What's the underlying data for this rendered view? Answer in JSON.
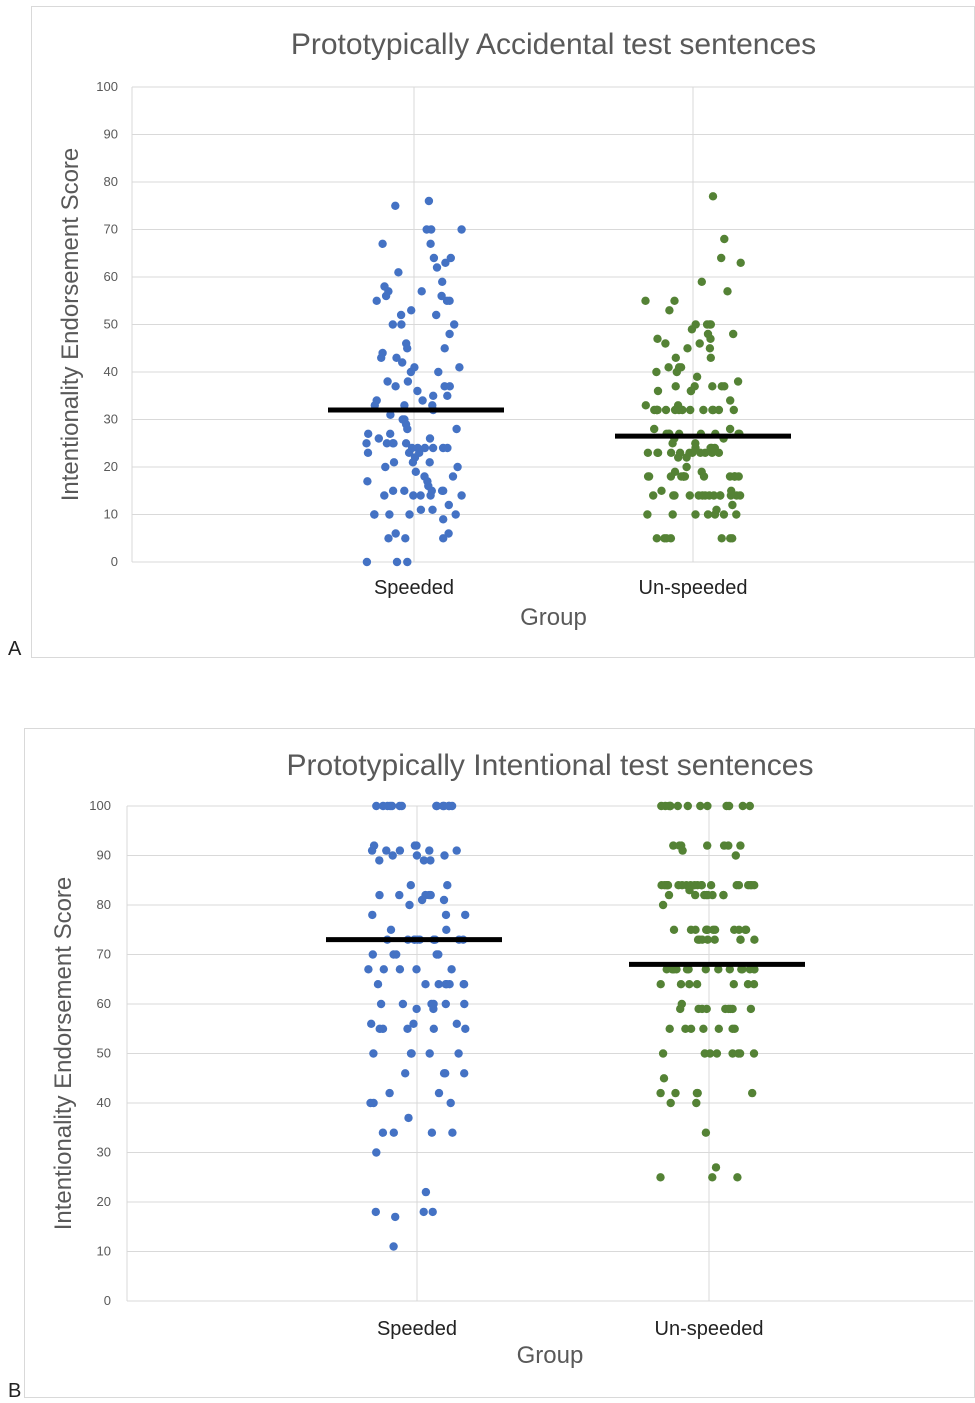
{
  "chart_data": [
    {
      "panel": "A",
      "type": "scatter",
      "title": "Prototypically Accidental test sentences",
      "xlabel": "Group",
      "ylabel": "Intentionality Endorsement Score",
      "ylim": [
        0,
        100
      ],
      "yticks": [
        0,
        10,
        20,
        30,
        40,
        50,
        60,
        70,
        80,
        90,
        100
      ],
      "categories": [
        "Speeded",
        "Un-speeded"
      ],
      "grid": true,
      "legend": "none",
      "series": [
        {
          "category": "Speeded",
          "color": "#4472C4",
          "mean": 32,
          "values": [
            76,
            75,
            70,
            70,
            70,
            67,
            67,
            64,
            64,
            63,
            62,
            61,
            59,
            58,
            57,
            57,
            56,
            56,
            55,
            55,
            55,
            53,
            52,
            52,
            50,
            50,
            50,
            48,
            46,
            45,
            45,
            44,
            43,
            43,
            42,
            41,
            41,
            40,
            40,
            38,
            38,
            37,
            37,
            37,
            36,
            35,
            35,
            34,
            34,
            33,
            33,
            33,
            32,
            31,
            30,
            30,
            29,
            28,
            28,
            27,
            27,
            26,
            26,
            25,
            25,
            25,
            25,
            25,
            24,
            24,
            24,
            24,
            24,
            24,
            23,
            23,
            23,
            22,
            21,
            21,
            21,
            20,
            20,
            19,
            18,
            18,
            17,
            17,
            16,
            15,
            15,
            15,
            15,
            15,
            14,
            14,
            14,
            14,
            14,
            12,
            11,
            11,
            10,
            10,
            10,
            10,
            10,
            9,
            6,
            6,
            5,
            5,
            5,
            0,
            0,
            0
          ]
        },
        {
          "category": "Un-speeded",
          "color": "#548235",
          "mean": 26.5,
          "values": [
            77,
            68,
            64,
            63,
            59,
            57,
            55,
            55,
            53,
            50,
            50,
            50,
            50,
            49,
            48,
            48,
            47,
            47,
            46,
            46,
            45,
            45,
            43,
            43,
            41,
            41,
            41,
            40,
            40,
            39,
            38,
            37,
            37,
            37,
            37,
            37,
            36,
            36,
            36,
            34,
            33,
            33,
            32,
            32,
            32,
            32,
            32,
            32,
            32,
            32,
            32,
            32,
            32,
            32,
            32,
            32,
            28,
            28,
            27,
            27,
            27,
            27,
            27,
            27,
            27,
            27,
            26,
            26,
            25,
            25,
            24,
            24,
            24,
            24,
            23,
            23,
            23,
            23,
            23,
            23,
            23,
            23,
            23,
            23,
            23,
            22,
            22,
            20,
            19,
            19,
            18,
            18,
            18,
            18,
            18,
            18,
            18,
            18,
            18,
            18,
            18,
            18,
            18,
            18,
            15,
            15,
            14,
            14,
            14,
            14,
            14,
            14,
            14,
            14,
            14,
            14,
            14,
            14,
            14,
            14,
            12,
            11,
            10,
            10,
            10,
            10,
            10,
            10,
            10,
            5,
            5,
            5,
            5,
            5,
            5,
            5
          ]
        }
      ]
    },
    {
      "panel": "B",
      "type": "scatter",
      "title": "Prototypically Intentional test sentences",
      "xlabel": "Group",
      "ylabel": "Intentionality Endorsement Score",
      "ylim": [
        0,
        100
      ],
      "yticks": [
        0,
        10,
        20,
        30,
        40,
        50,
        60,
        70,
        80,
        90,
        100
      ],
      "categories": [
        "Speeded",
        "Un-speeded"
      ],
      "grid": true,
      "legend": "none",
      "series": [
        {
          "category": "Speeded",
          "color": "#4472C4",
          "mean": 73,
          "values": [
            100,
            100,
            100,
            100,
            100,
            100,
            100,
            100,
            100,
            100,
            100,
            100,
            100,
            100,
            92,
            92,
            92,
            91,
            91,
            91,
            91,
            91,
            90,
            90,
            90,
            89,
            89,
            89,
            84,
            84,
            82,
            82,
            82,
            82,
            82,
            81,
            81,
            80,
            78,
            78,
            78,
            75,
            75,
            73,
            73,
            73,
            73,
            73,
            73,
            73,
            73,
            73,
            73,
            73,
            70,
            70,
            70,
            70,
            70,
            67,
            67,
            67,
            67,
            67,
            64,
            64,
            64,
            64,
            64,
            64,
            64,
            64,
            60,
            60,
            60,
            60,
            60,
            60,
            59,
            59,
            56,
            56,
            56,
            55,
            55,
            55,
            55,
            55,
            50,
            50,
            50,
            50,
            50,
            46,
            46,
            46,
            46,
            42,
            42,
            40,
            40,
            40,
            37,
            34,
            34,
            34,
            34,
            30,
            22,
            18,
            18,
            18,
            17,
            11
          ]
        },
        {
          "category": "Un-speeded",
          "color": "#548235",
          "mean": 68,
          "values": [
            100,
            100,
            100,
            100,
            100,
            100,
            100,
            100,
            100,
            100,
            100,
            100,
            100,
            92,
            92,
            92,
            92,
            92,
            92,
            92,
            91,
            90,
            84,
            84,
            84,
            84,
            84,
            84,
            84,
            84,
            84,
            84,
            84,
            84,
            84,
            84,
            84,
            84,
            84,
            84,
            84,
            84,
            83,
            82,
            82,
            82,
            82,
            82,
            82,
            82,
            82,
            80,
            75,
            75,
            75,
            75,
            75,
            75,
            75,
            75,
            75,
            75,
            75,
            75,
            73,
            73,
            73,
            73,
            73,
            73,
            73,
            73,
            67,
            67,
            67,
            67,
            67,
            67,
            67,
            67,
            67,
            67,
            67,
            67,
            67,
            67,
            67,
            64,
            64,
            64,
            64,
            64,
            64,
            64,
            60,
            59,
            59,
            59,
            59,
            59,
            59,
            59,
            59,
            59,
            55,
            55,
            55,
            55,
            55,
            55,
            55,
            50,
            50,
            50,
            50,
            50,
            50,
            50,
            50,
            45,
            42,
            42,
            42,
            42,
            42,
            40,
            40,
            34,
            27,
            25,
            25,
            25
          ]
        }
      ]
    }
  ],
  "panel_letters": {
    "a": "A",
    "b": "B"
  }
}
